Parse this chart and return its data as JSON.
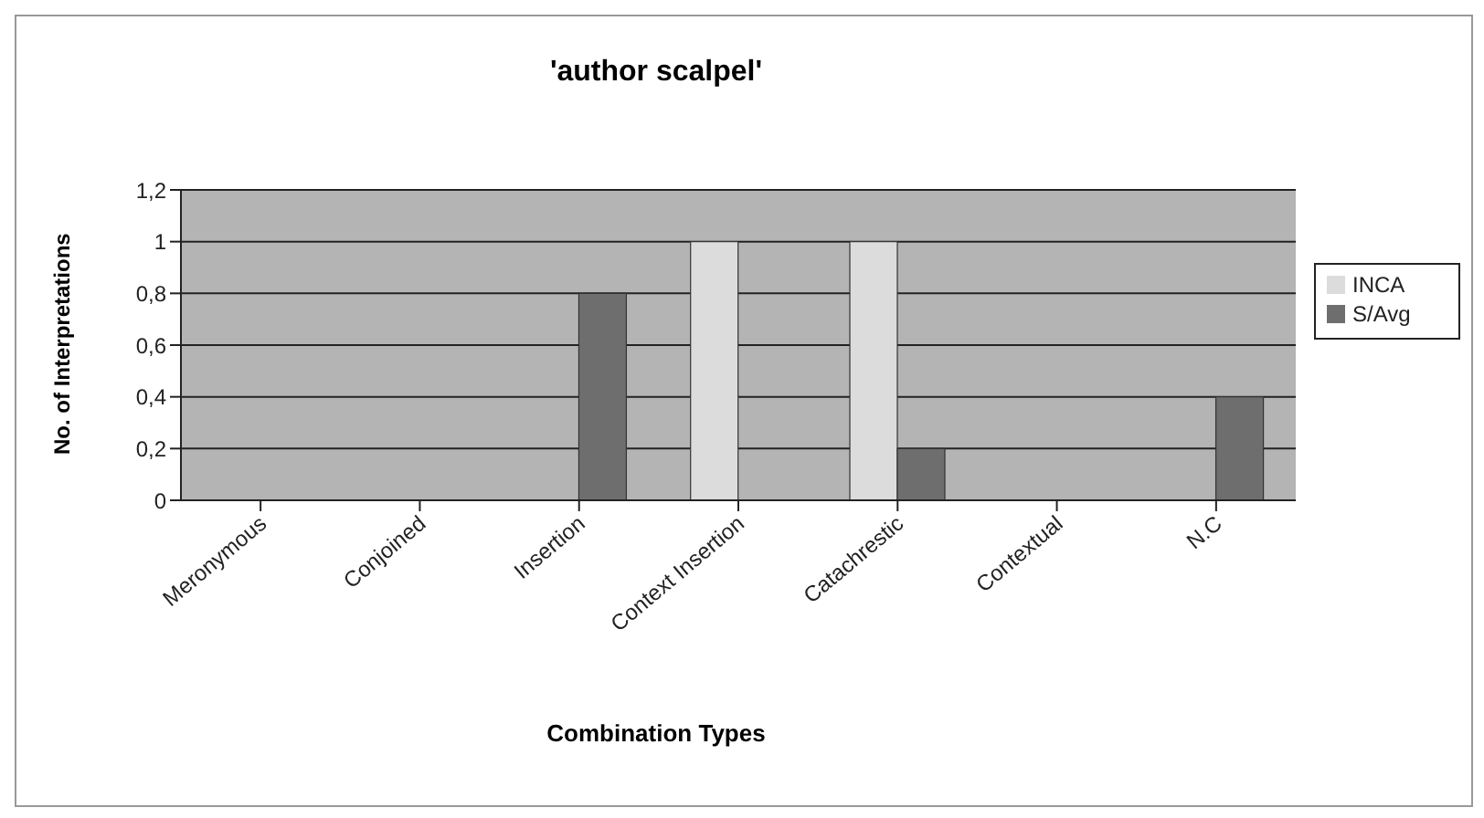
{
  "chart_data": {
    "type": "bar",
    "title": "'author scalpel'",
    "xlabel": "Combination Types",
    "ylabel": "No. of Interpretations",
    "categories": [
      "Meronymous",
      "Conjoined",
      "Insertion",
      "Context Insertion",
      "Catachrestic",
      "Contextual",
      "N.C"
    ],
    "series": [
      {
        "name": "INCA",
        "color": "#dcdcdc",
        "values": [
          0,
          0,
          0,
          1,
          1,
          0,
          0
        ]
      },
      {
        "name": "S/Avg",
        "color": "#6e6e6e",
        "values": [
          0,
          0,
          0.8,
          0,
          0.2,
          0,
          0.4
        ]
      }
    ],
    "ylim": [
      0,
      1.2
    ],
    "yticks": [
      0,
      {
        "value": 0.2,
        "label": "0,2"
      },
      {
        "value": 0.4,
        "label": "0,4"
      },
      {
        "value": 0.6,
        "label": "0,6"
      },
      {
        "value": 0.8,
        "label": "0,8"
      },
      1,
      {
        "value": 1.2,
        "label": "1,2"
      }
    ],
    "grid": "y",
    "legend": "right"
  }
}
